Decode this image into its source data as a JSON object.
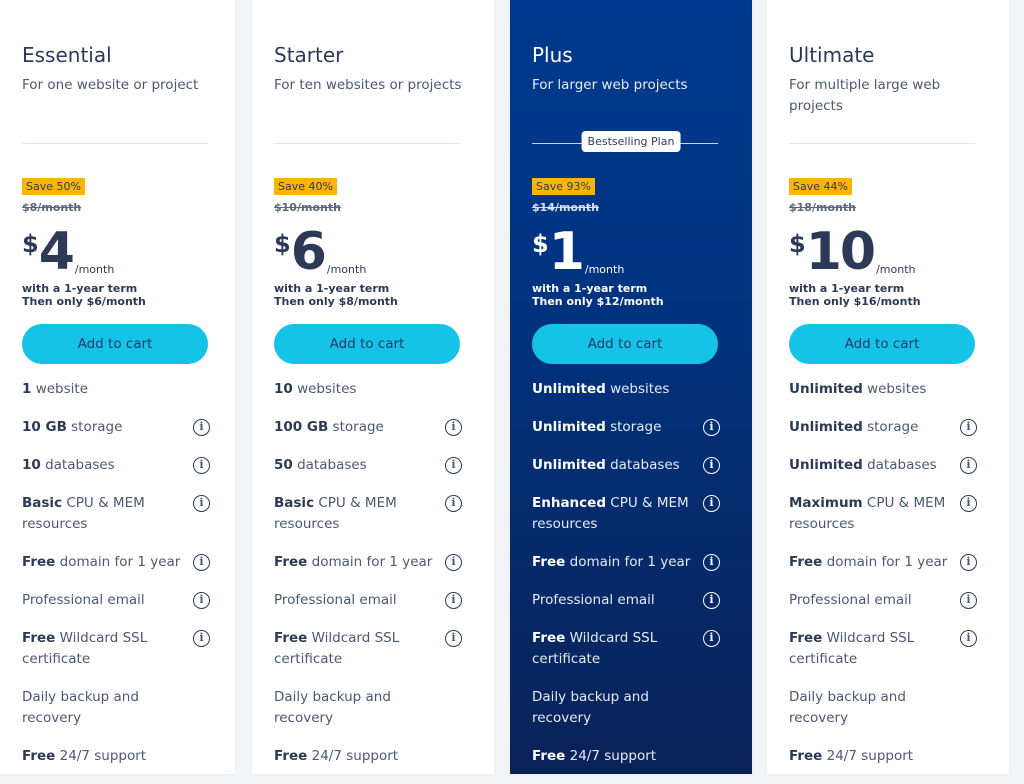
{
  "colors": {
    "accent": "#15c3e6",
    "badge": "#ffb400",
    "highlight": "#003a8e"
  },
  "plans": [
    {
      "name": "Essential",
      "desc": "For one website or project",
      "save": "Save 50%",
      "old": "$8/month",
      "currency": "$",
      "amount": "4",
      "per": "/month",
      "term1": "with a 1-year term",
      "term2": "Then only $6/month",
      "cta": "Add to cart",
      "highlight": false,
      "features": [
        {
          "b": "1",
          "t": " website",
          "info": false
        },
        {
          "b": "10 GB",
          "t": " storage",
          "info": true
        },
        {
          "b": "10",
          "t": " databases",
          "info": true
        },
        {
          "b": "Basic",
          "t": " CPU & MEM resources",
          "info": true
        },
        {
          "b": "Free",
          "t": " domain for 1 year",
          "info": true
        },
        {
          "b": "",
          "t": "Professional email",
          "info": true
        },
        {
          "b": "Free",
          "t": " Wildcard SSL certificate",
          "info": true
        },
        {
          "b": "",
          "t": "Daily backup and recovery",
          "info": false
        },
        {
          "b": "Free",
          "t": " 24/7 support",
          "info": false
        }
      ]
    },
    {
      "name": "Starter",
      "desc": "For ten websites or projects",
      "save": "Save 40%",
      "old": "$10/month",
      "currency": "$",
      "amount": "6",
      "per": "/month",
      "term1": "with a 1-year term",
      "term2": "Then only $8/month",
      "cta": "Add to cart",
      "highlight": false,
      "features": [
        {
          "b": "10",
          "t": " websites",
          "info": false
        },
        {
          "b": "100 GB",
          "t": " storage",
          "info": true
        },
        {
          "b": "50",
          "t": " databases",
          "info": true
        },
        {
          "b": "Basic",
          "t": " CPU & MEM resources",
          "info": true
        },
        {
          "b": "Free",
          "t": " domain for 1 year",
          "info": true
        },
        {
          "b": "",
          "t": "Professional email",
          "info": true
        },
        {
          "b": "Free",
          "t": " Wildcard SSL certificate",
          "info": true
        },
        {
          "b": "",
          "t": "Daily backup and recovery",
          "info": false
        },
        {
          "b": "Free",
          "t": " 24/7 support",
          "info": false
        }
      ]
    },
    {
      "name": "Plus",
      "desc": "For larger web projects",
      "badge": "Bestselling Plan",
      "save": "Save 93%",
      "old": "$14/month",
      "currency": "$",
      "amount": "1",
      "per": "/month",
      "term1": "with a 1-year term",
      "term2": "Then only $12/month",
      "cta": "Add to cart",
      "highlight": true,
      "features": [
        {
          "b": "Unlimited",
          "t": " websites",
          "info": false
        },
        {
          "b": "Unlimited",
          "t": " storage",
          "info": true
        },
        {
          "b": "Unlimited",
          "t": " databases",
          "info": true
        },
        {
          "b": "Enhanced",
          "t": " CPU & MEM resources",
          "info": true
        },
        {
          "b": "Free",
          "t": " domain for 1 year",
          "info": true
        },
        {
          "b": "",
          "t": "Professional email",
          "info": true
        },
        {
          "b": "Free",
          "t": " Wildcard SSL certificate",
          "info": true
        },
        {
          "b": "",
          "t": "Daily backup and recovery",
          "info": false
        },
        {
          "b": "Free",
          "t": " 24/7 support",
          "info": false
        }
      ]
    },
    {
      "name": "Ultimate",
      "desc": "For multiple large web projects",
      "save": "Save 44%",
      "old": "$18/month",
      "currency": "$",
      "amount": "10",
      "per": "/month",
      "term1": "with a 1-year term",
      "term2": "Then only $16/month",
      "cta": "Add to cart",
      "highlight": false,
      "features": [
        {
          "b": "Unlimited",
          "t": " websites",
          "info": false
        },
        {
          "b": "Unlimited",
          "t": " storage",
          "info": true
        },
        {
          "b": "Unlimited",
          "t": " databases",
          "info": true
        },
        {
          "b": "Maximum",
          "t": " CPU & MEM resources",
          "info": true
        },
        {
          "b": "Free",
          "t": " domain for 1 year",
          "info": true
        },
        {
          "b": "",
          "t": "Professional email",
          "info": true
        },
        {
          "b": "Free",
          "t": " Wildcard SSL certificate",
          "info": true
        },
        {
          "b": "",
          "t": "Daily backup and recovery",
          "info": false
        },
        {
          "b": "Free",
          "t": " 24/7 support",
          "info": false
        }
      ]
    }
  ]
}
